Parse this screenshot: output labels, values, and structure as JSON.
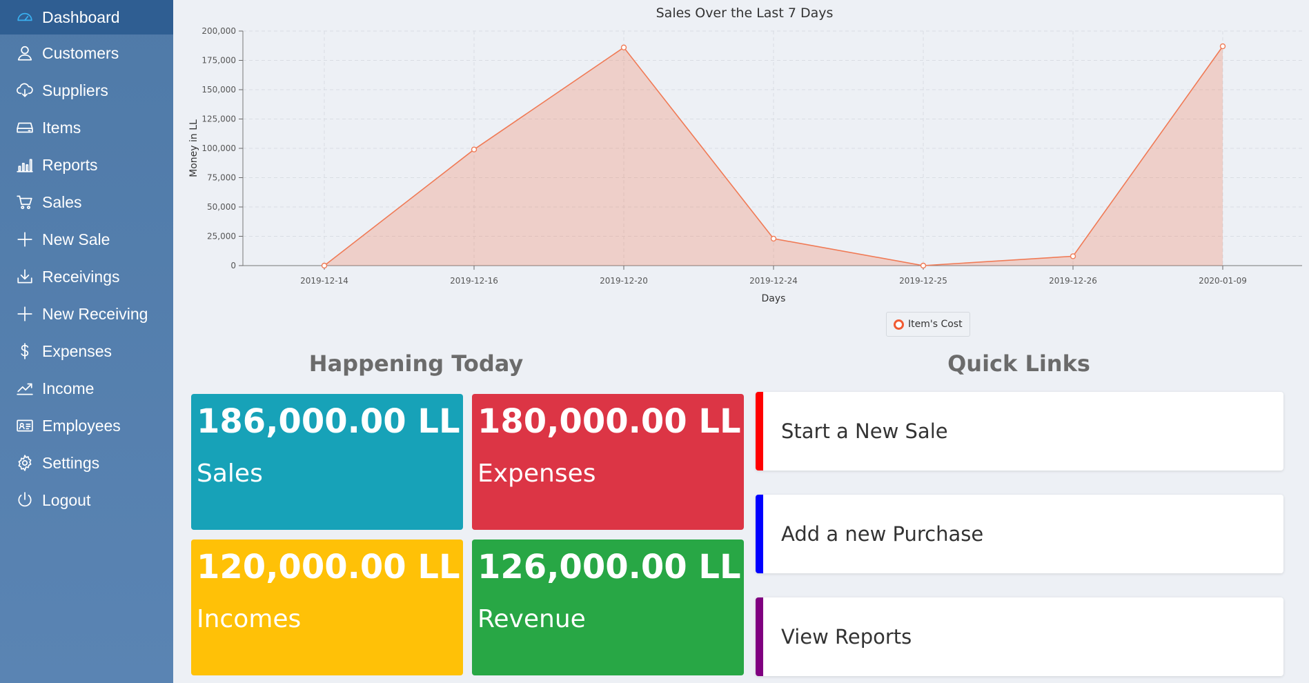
{
  "sidebar": {
    "items": [
      {
        "label": "Dashboard",
        "icon": "dashboard-icon",
        "active": true
      },
      {
        "label": "Customers",
        "icon": "user-icon"
      },
      {
        "label": "Suppliers",
        "icon": "cloud-download-icon"
      },
      {
        "label": "Items",
        "icon": "inbox-icon"
      },
      {
        "label": "Reports",
        "icon": "bar-chart-icon"
      },
      {
        "label": "Sales",
        "icon": "cart-icon"
      },
      {
        "label": "New Sale",
        "icon": "plus-icon"
      },
      {
        "label": "Receivings",
        "icon": "download-icon"
      },
      {
        "label": "New Receiving",
        "icon": "plus-icon"
      },
      {
        "label": "Expenses",
        "icon": "dollar-icon"
      },
      {
        "label": "Income",
        "icon": "trend-icon"
      },
      {
        "label": "Employees",
        "icon": "id-card-icon"
      },
      {
        "label": "Settings",
        "icon": "gear-icon"
      },
      {
        "label": "Logout",
        "icon": "power-icon"
      }
    ]
  },
  "chart_data": {
    "type": "area",
    "title": "Sales Over the Last 7 Days",
    "xlabel": "Days",
    "ylabel": "Money in LL",
    "categories": [
      "2019-12-14",
      "2019-12-16",
      "2019-12-20",
      "2019-12-24",
      "2019-12-25",
      "2019-12-26",
      "2020-01-09"
    ],
    "series": [
      {
        "name": "Item's Cost",
        "values": [
          0,
          99000,
          186000,
          23000,
          0,
          8000,
          187000
        ],
        "color": "#f07a55"
      }
    ],
    "ylim": [
      0,
      200000
    ],
    "yticks": [
      "0",
      "25,000",
      "50,000",
      "75,000",
      "100,000",
      "125,000",
      "150,000",
      "175,000",
      "200,000"
    ],
    "grid": true,
    "legend_position": "bottom-center"
  },
  "today": {
    "title": "Happening Today",
    "tiles": [
      {
        "value": "186,000.00 LL",
        "label": "Sales",
        "color": "#17a2b8"
      },
      {
        "value": "180,000.00 LL",
        "label": "Expenses",
        "color": "#dc3545"
      },
      {
        "value": "120,000.00 LL",
        "label": "Incomes",
        "color": "#ffc107"
      },
      {
        "value": "126,000.00 LL",
        "label": "Revenue",
        "color": "#28a745"
      }
    ]
  },
  "quick_links": {
    "title": "Quick Links",
    "items": [
      {
        "label": "Start a New Sale",
        "accent": "#ff0000"
      },
      {
        "label": "Add a new Purchase",
        "accent": "#0000ff"
      },
      {
        "label": "View Reports",
        "accent": "#800080"
      }
    ]
  }
}
